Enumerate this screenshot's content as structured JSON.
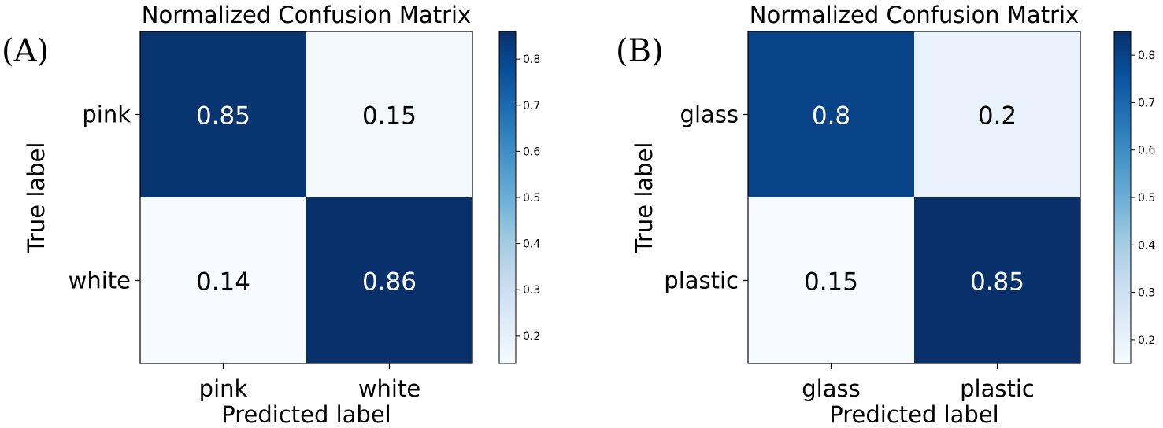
{
  "chart_data": [
    {
      "type": "heatmap",
      "panel_label": "(A)",
      "title": "Normalized Confusion Matrix",
      "xlabel": "Predicted label",
      "ylabel": "True label",
      "x_categories": [
        "pink",
        "white"
      ],
      "y_categories": [
        "pink",
        "white"
      ],
      "values": [
        [
          0.85,
          0.15
        ],
        [
          0.14,
          0.86
        ]
      ],
      "value_labels": [
        [
          "0.85",
          "0.15"
        ],
        [
          "0.14",
          "0.86"
        ]
      ],
      "colormap": "Blues",
      "color_range": [
        0.14,
        0.86
      ],
      "colorbar_ticks": [
        "0.2",
        "0.3",
        "0.4",
        "0.5",
        "0.6",
        "0.7",
        "0.8"
      ]
    },
    {
      "type": "heatmap",
      "panel_label": "(B)",
      "title": "Normalized Confusion Matrix",
      "xlabel": "Predicted label",
      "ylabel": "True label",
      "x_categories": [
        "glass",
        "plastic"
      ],
      "y_categories": [
        "glass",
        "plastic"
      ],
      "values": [
        [
          0.8,
          0.2
        ],
        [
          0.15,
          0.85
        ]
      ],
      "value_labels": [
        [
          "0.8",
          "0.2"
        ],
        [
          "0.15",
          "0.85"
        ]
      ],
      "colormap": "Blues",
      "color_range": [
        0.15,
        0.85
      ],
      "colorbar_ticks": [
        "0.2",
        "0.3",
        "0.4",
        "0.5",
        "0.6",
        "0.7",
        "0.8"
      ]
    }
  ]
}
